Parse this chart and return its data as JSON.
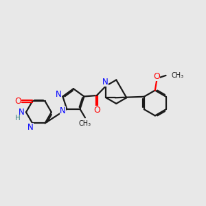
{
  "background_color": "#e8e8e8",
  "bond_color": "#1a1a1a",
  "n_color": "#0000ff",
  "o_color": "#ff0000",
  "h_color": "#2f8080",
  "line_width": 1.6,
  "font_size": 8.5,
  "figsize": [
    3.0,
    3.0
  ],
  "dpi": 100,
  "xlim": [
    0,
    10
  ],
  "ylim": [
    0,
    10
  ]
}
